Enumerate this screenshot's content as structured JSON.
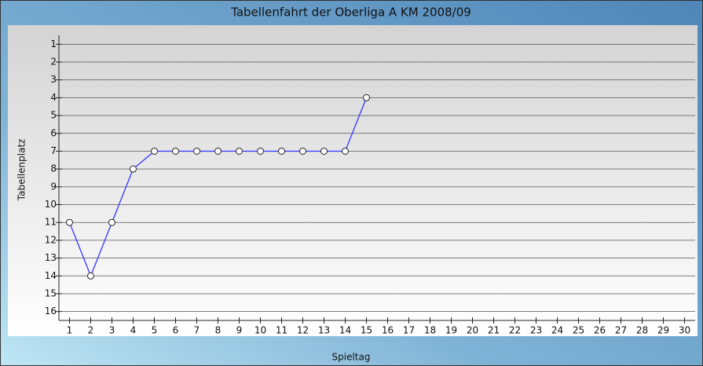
{
  "chart_data": {
    "type": "line",
    "title": "Tabellenfahrt der Oberliga A KM 2008/09",
    "x_label": "Spieltag",
    "y_label": "Tabellenplatz",
    "x": [
      1,
      2,
      3,
      4,
      5,
      6,
      7,
      8,
      9,
      10,
      11,
      12,
      13,
      14,
      15
    ],
    "series": [
      {
        "name": null,
        "color": "#3535ff",
        "values": [
          11,
          14,
          11,
          8,
          7,
          7,
          7,
          7,
          7,
          7,
          7,
          7,
          7,
          7,
          4
        ]
      }
    ],
    "xlim": [
      0.5,
      30.5
    ],
    "xticks": [
      1,
      2,
      3,
      4,
      5,
      6,
      7,
      8,
      9,
      10,
      11,
      12,
      13,
      14,
      15,
      16,
      17,
      18,
      19,
      20,
      21,
      22,
      23,
      24,
      25,
      26,
      27,
      28,
      29,
      30
    ],
    "ylim": [
      0.5,
      16.5
    ],
    "y_inverted": true,
    "yticks": [
      1,
      2,
      3,
      4,
      5,
      6,
      7,
      8,
      9,
      10,
      11,
      12,
      13,
      14,
      15,
      16
    ],
    "grid": true
  }
}
